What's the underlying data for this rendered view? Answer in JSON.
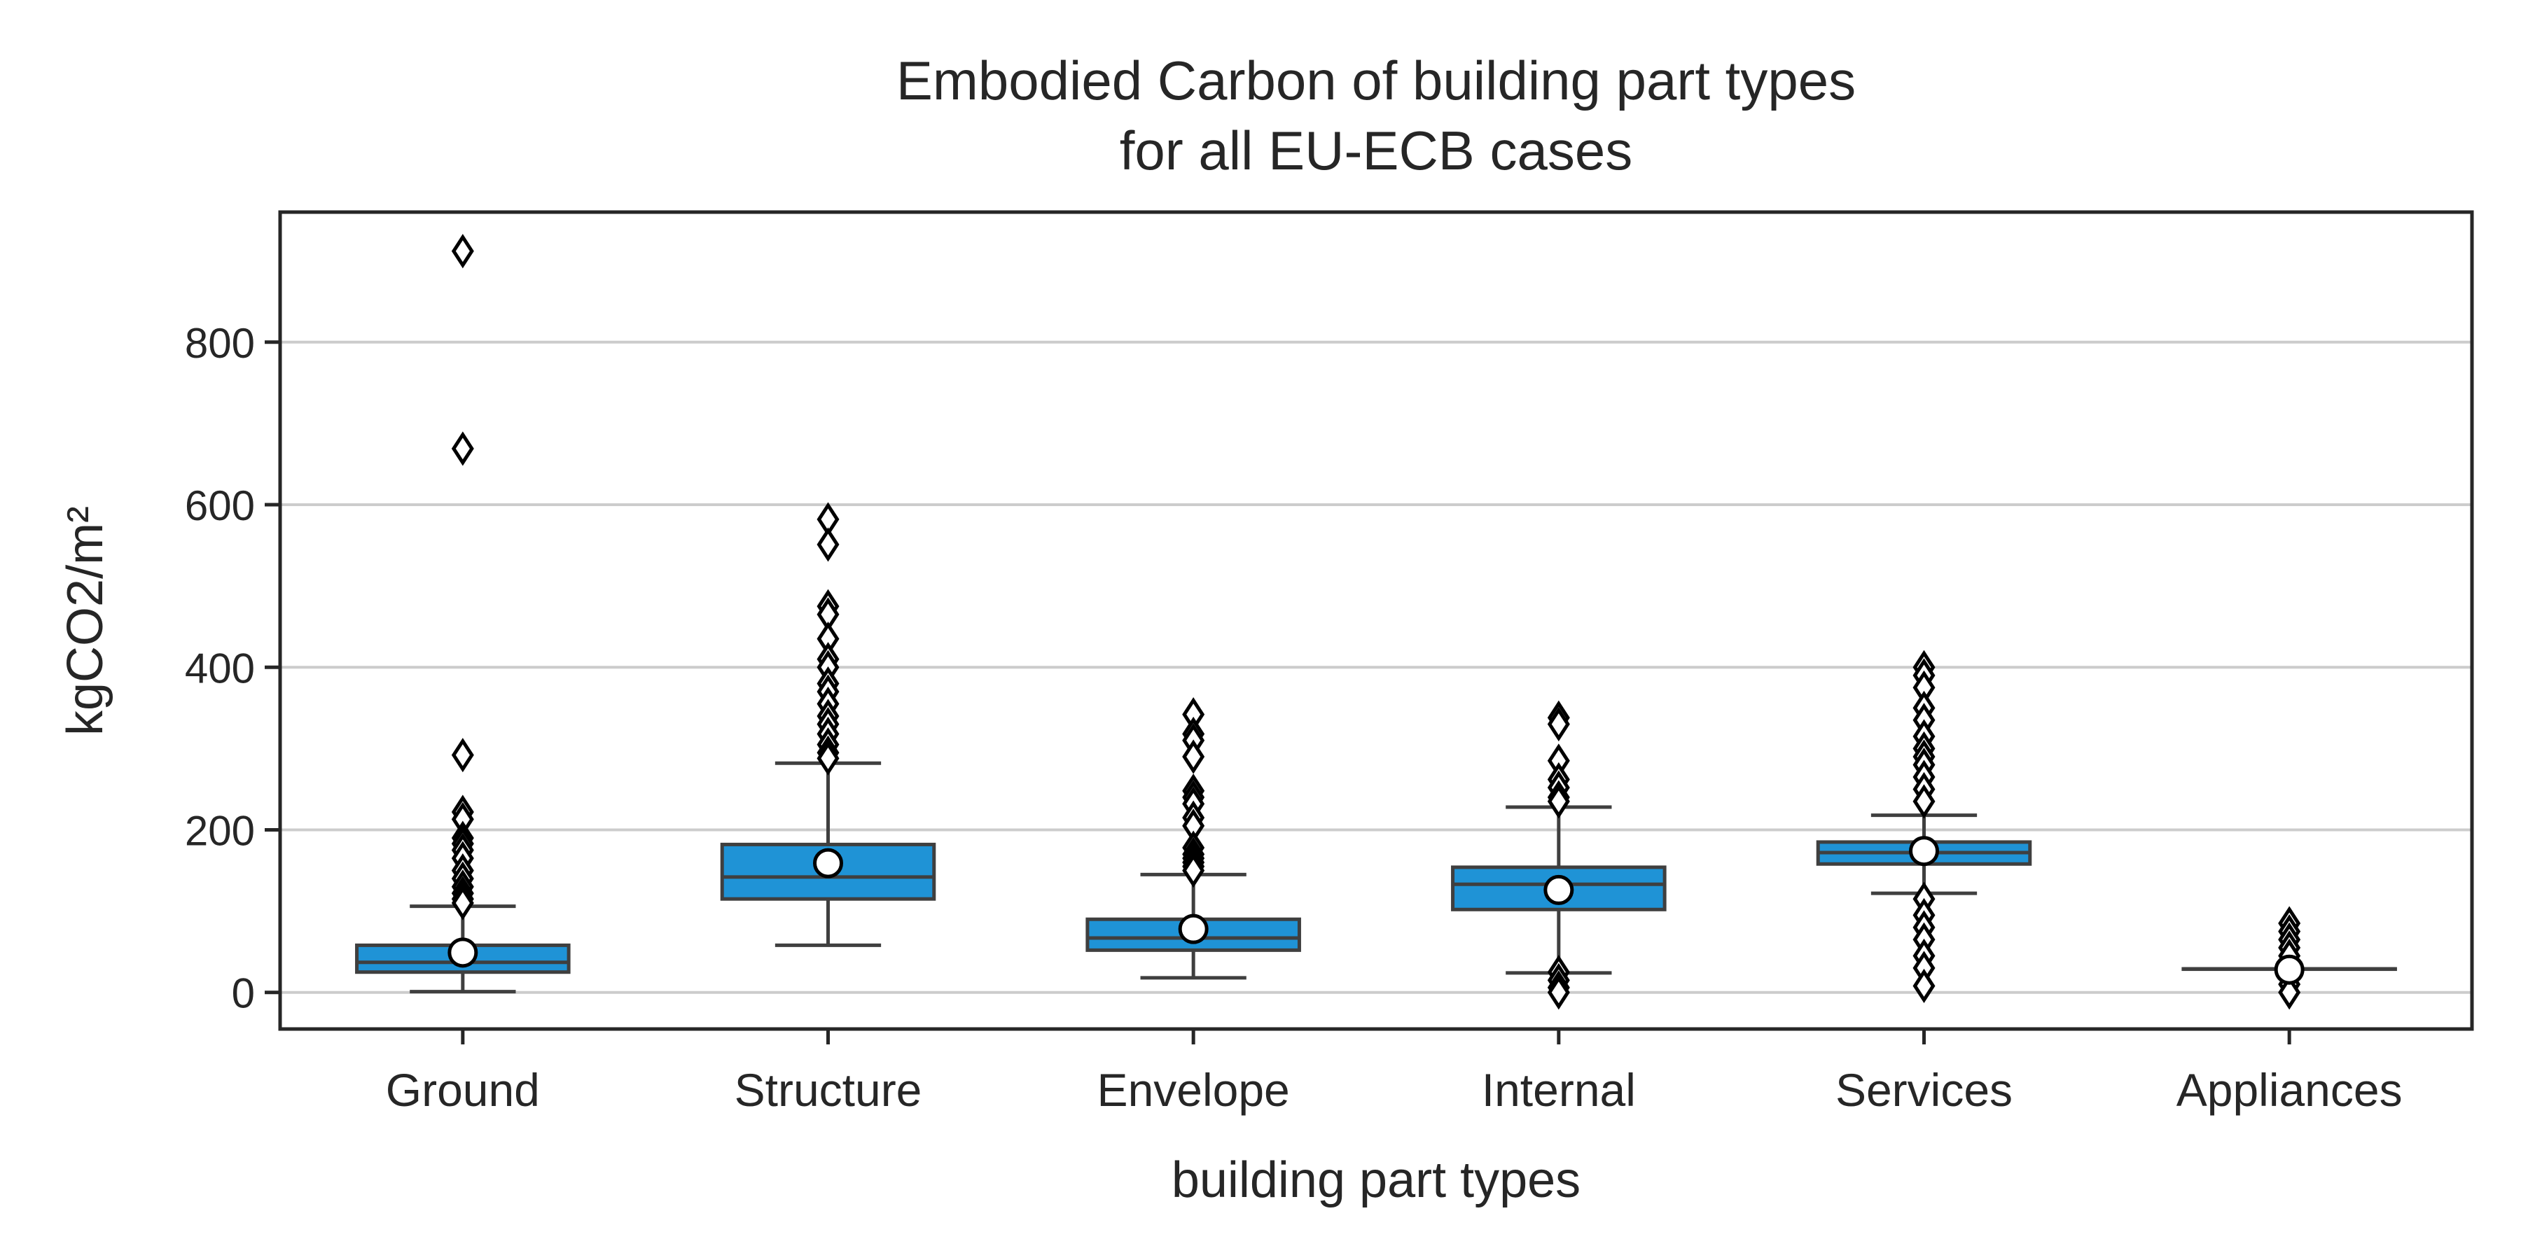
{
  "chart_data": {
    "type": "box",
    "title": "Embodied Carbon of building part types",
    "subtitle": "for all EU-ECB cases",
    "xlabel": "building part types",
    "ylabel": "kgCO2/m²",
    "ylim": [
      -45,
      960
    ],
    "yticks": [
      0,
      200,
      400,
      600,
      800
    ],
    "grid": "y",
    "colors": {
      "box": "#1f93d6",
      "edge": "#3f3f3f",
      "grid": "#cccccc",
      "mean_fill": "#ffffff",
      "text": "#262626"
    },
    "categories": [
      "Ground",
      "Structure",
      "Envelope",
      "Internal",
      "Services",
      "Appliances"
    ],
    "boxes": [
      {
        "name": "Ground",
        "q1": 25,
        "median": 37,
        "q3": 58,
        "whisker_low": 1,
        "whisker_high": 106,
        "mean": 49,
        "outliers": [
          912,
          669,
          292,
          222,
          213,
          190,
          183,
          175,
          165,
          150,
          140,
          130,
          122,
          115,
          110
        ]
      },
      {
        "name": "Structure",
        "q1": 115,
        "median": 142,
        "q3": 182,
        "whisker_low": 58,
        "whisker_high": 282,
        "mean": 159,
        "outliers": [
          582,
          551,
          475,
          465,
          435,
          410,
          400,
          380,
          370,
          355,
          340,
          330,
          318,
          305,
          295,
          288
        ]
      },
      {
        "name": "Envelope",
        "q1": 52,
        "median": 67,
        "q3": 90,
        "whisker_low": 18,
        "whisker_high": 145,
        "mean": 78,
        "outliers": [
          342,
          318,
          310,
          290,
          248,
          240,
          232,
          215,
          205,
          178,
          170,
          165,
          160,
          155,
          150
        ]
      },
      {
        "name": "Internal",
        "q1": 102,
        "median": 133,
        "q3": 154,
        "whisker_low": 24,
        "whisker_high": 228,
        "mean": 126,
        "outliers": [
          338,
          330,
          285,
          262,
          252,
          240,
          235,
          25,
          15,
          6,
          0
        ]
      },
      {
        "name": "Services",
        "q1": 158,
        "median": 172,
        "q3": 185,
        "whisker_low": 122,
        "whisker_high": 218,
        "mean": 174,
        "outliers": [
          400,
          390,
          375,
          350,
          335,
          315,
          300,
          290,
          280,
          265,
          250,
          235,
          115,
          95,
          80,
          65,
          45,
          30,
          8
        ]
      },
      {
        "name": "Appliances",
        "q1": 29,
        "median": 29,
        "q3": 29,
        "whisker_low": 29,
        "whisker_high": 29,
        "mean": 28,
        "outliers": [
          85,
          75,
          65,
          55,
          45,
          20,
          10,
          0
        ]
      }
    ]
  }
}
